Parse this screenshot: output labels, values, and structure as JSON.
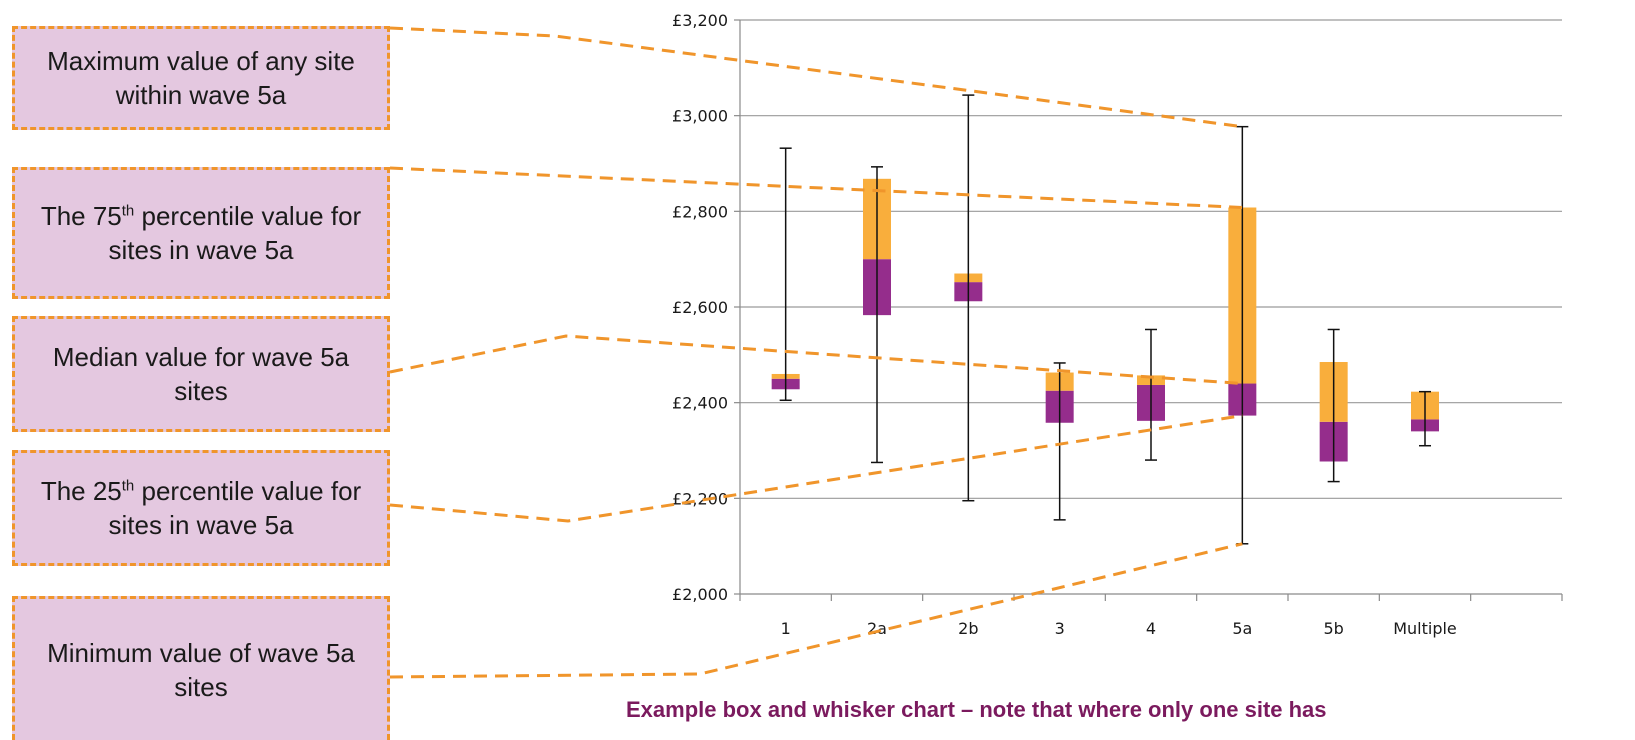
{
  "callouts": {
    "max": {
      "text": "Maximum value of any site within wave 5a"
    },
    "p75": {
      "pre": "The 75",
      "sup": "th",
      "post": " percentile value for sites in wave 5a"
    },
    "median": {
      "text": "Median value for wave 5a sites"
    },
    "p25": {
      "pre": "The 25",
      "sup": "th",
      "post": " percentile value for sites in wave 5a"
    },
    "min": {
      "text": "Minimum value of wave 5a sites"
    }
  },
  "caption": "Example box and whisker chart – note that where only one site has",
  "colors": {
    "lower_box": "#952d8c",
    "upper_box": "#f9ae3c",
    "callout_fill": "#e4c8e0",
    "dashed_line": "#f0952b",
    "caption": "#7b1a5e"
  },
  "chart_data": {
    "type": "box",
    "title": "",
    "xlabel": "",
    "ylabel": "",
    "ylim": [
      2000,
      3200
    ],
    "yticks": [
      2000,
      2200,
      2400,
      2600,
      2800,
      3000,
      3200
    ],
    "ytick_labels": [
      "£2,000",
      "£2,200",
      "£2,400",
      "£2,600",
      "£2,800",
      "£3,000",
      "£3,200"
    ],
    "grid": true,
    "categories": [
      "1",
      "2a",
      "2b",
      "3",
      "4",
      "5a",
      "5b",
      "Multiple"
    ],
    "min": [
      2405,
      2275,
      2195,
      2155,
      2280,
      2105,
      2235,
      2310
    ],
    "q1": [
      2428,
      2583,
      2612,
      2358,
      2362,
      2373,
      2277,
      2340
    ],
    "median": [
      2450,
      2700,
      2652,
      2425,
      2437,
      2440,
      2360,
      2365
    ],
    "q3": [
      2460,
      2868,
      2670,
      2463,
      2457,
      2808,
      2485,
      2423
    ],
    "max": [
      2932,
      2893,
      3043,
      2483,
      2553,
      2977,
      2553,
      2423
    ]
  }
}
